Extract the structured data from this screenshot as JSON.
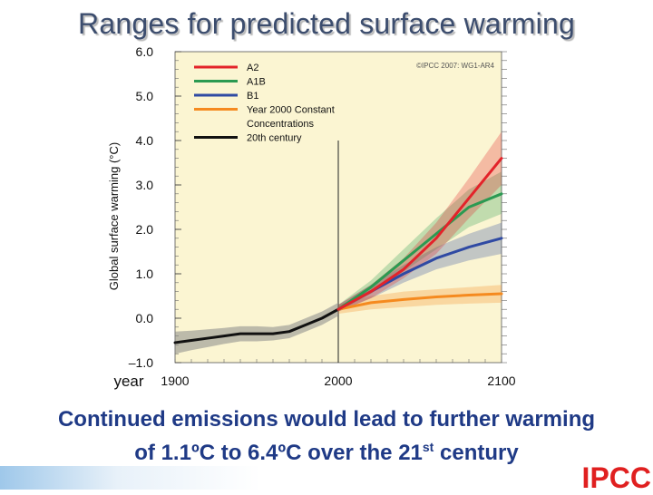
{
  "slide": {
    "title": "Ranges for predicted surface warming",
    "caption_line1": "Continued emissions would lead to further warming",
    "caption_line2_before": "of 1.1ºC to 6.4ºC over the 21",
    "caption_sup": "st",
    "caption_line2_after": " century",
    "logo": "IPCC"
  },
  "colors": {
    "plot_bg": "#fbf5d2",
    "A2": "#e3232a",
    "A1B": "#2b9a52",
    "B1": "#2f4aa3",
    "const": "#f58a1f",
    "hist": "#111111",
    "title": "#3c4d6e",
    "caption": "#1f3a86",
    "logo": "#e02020"
  },
  "chart_data": {
    "type": "line",
    "xlabel": "year",
    "ylabel": "Global surface warming (°C)",
    "credit": "©IPCC 2007: WG1-AR4",
    "xlim": [
      1900,
      2100
    ],
    "ylim": [
      -1.0,
      6.0
    ],
    "xticks": [
      1900,
      2000,
      2100
    ],
    "yticks": [
      -1.0,
      0.0,
      1.0,
      2.0,
      3.0,
      4.0,
      5.0,
      6.0
    ],
    "ytick_labels": [
      "–1.0",
      "0.0",
      "1.0",
      "2.0",
      "3.0",
      "4.0",
      "5.0",
      "6.0"
    ],
    "vertical_marker_x": 2000,
    "legend_position": "top-left",
    "series": [
      {
        "name": "A2",
        "color_key": "A2",
        "x": [
          2000,
          2020,
          2040,
          2060,
          2080,
          2100
        ],
        "y": [
          0.2,
          0.6,
          1.1,
          1.8,
          2.7,
          3.6
        ],
        "lower": [
          0.15,
          0.45,
          0.9,
          1.45,
          2.25,
          3.0
        ],
        "upper": [
          0.3,
          0.75,
          1.35,
          2.15,
          3.15,
          4.2
        ]
      },
      {
        "name": "A1B",
        "color_key": "A1B",
        "x": [
          2000,
          2020,
          2040,
          2060,
          2080,
          2100
        ],
        "y": [
          0.2,
          0.7,
          1.3,
          1.9,
          2.5,
          2.8
        ],
        "lower": [
          0.15,
          0.55,
          1.05,
          1.55,
          2.05,
          2.35
        ],
        "upper": [
          0.3,
          0.85,
          1.55,
          2.25,
          2.9,
          3.3
        ]
      },
      {
        "name": "B1",
        "color_key": "B1",
        "x": [
          2000,
          2020,
          2040,
          2060,
          2080,
          2100
        ],
        "y": [
          0.2,
          0.6,
          1.0,
          1.35,
          1.6,
          1.8
        ],
        "lower": [
          0.15,
          0.45,
          0.8,
          1.1,
          1.3,
          1.45
        ],
        "upper": [
          0.3,
          0.75,
          1.2,
          1.6,
          1.9,
          2.15
        ]
      },
      {
        "name": "Year 2000 Constant Concentrations",
        "color_key": "const",
        "x": [
          2000,
          2020,
          2040,
          2060,
          2080,
          2100
        ],
        "y": [
          0.2,
          0.35,
          0.42,
          0.48,
          0.52,
          0.55
        ],
        "lower": [
          0.1,
          0.2,
          0.25,
          0.3,
          0.33,
          0.35
        ],
        "upper": [
          0.3,
          0.5,
          0.6,
          0.65,
          0.7,
          0.75
        ]
      },
      {
        "name": "20th century",
        "color_key": "hist",
        "x": [
          1900,
          1910,
          1920,
          1930,
          1940,
          1950,
          1960,
          1970,
          1980,
          1990,
          2000
        ],
        "y": [
          -0.55,
          -0.5,
          -0.45,
          -0.4,
          -0.35,
          -0.35,
          -0.35,
          -0.3,
          -0.15,
          0.0,
          0.2
        ],
        "lower": [
          -0.8,
          -0.72,
          -0.65,
          -0.58,
          -0.52,
          -0.52,
          -0.5,
          -0.45,
          -0.3,
          -0.15,
          0.05
        ],
        "upper": [
          -0.3,
          -0.28,
          -0.25,
          -0.22,
          -0.18,
          -0.18,
          -0.2,
          -0.15,
          0.0,
          0.15,
          0.35
        ]
      }
    ]
  }
}
